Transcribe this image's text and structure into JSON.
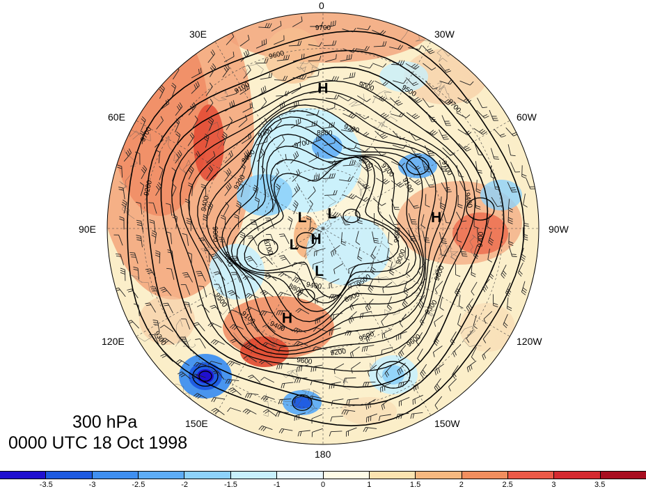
{
  "title": {
    "level": "300 hPa",
    "time": "0000 UTC 18 Oct 1998"
  },
  "longitude_labels": [
    {
      "id": "0",
      "text": "0"
    },
    {
      "id": "30W",
      "text": "30W"
    },
    {
      "id": "60W",
      "text": "60W"
    },
    {
      "id": "90W",
      "text": "90W"
    },
    {
      "id": "120W",
      "text": "120W"
    },
    {
      "id": "150W",
      "text": "150W"
    },
    {
      "id": "180",
      "text": "180"
    },
    {
      "id": "150E",
      "text": "150E"
    },
    {
      "id": "120E",
      "text": "120E"
    },
    {
      "id": "90E",
      "text": "90E"
    },
    {
      "id": "60E",
      "text": "60E"
    },
    {
      "id": "30E",
      "text": "30E"
    }
  ],
  "pressure_centers": [
    {
      "text": "H",
      "lon_deg": 0,
      "colat_deg": 47
    },
    {
      "text": "H",
      "lon_deg": -84,
      "colat_deg": 38
    },
    {
      "text": "H",
      "lon_deg": 158,
      "colat_deg": 32
    },
    {
      "text": "H",
      "lon_deg": 145,
      "colat_deg": 4
    },
    {
      "text": "L",
      "lon_deg": 60,
      "colat_deg": 8
    },
    {
      "text": "L",
      "lon_deg": -30,
      "colat_deg": 6
    },
    {
      "text": "L",
      "lon_deg": 118,
      "colat_deg": 11
    },
    {
      "text": "L",
      "lon_deg": 175,
      "colat_deg": 14
    }
  ],
  "contour_labels": [
    "9700",
    "9700",
    "9700",
    "9600",
    "9600",
    "9500",
    "9400",
    "9300",
    "9200",
    "9100",
    "9000",
    "8900",
    "8800",
    "8700",
    "9700",
    "9600",
    "9500",
    "9400",
    "9300",
    "9200",
    "9100",
    "9000",
    "8900",
    "8800",
    "9700",
    "9600",
    "9500",
    "9400",
    "9300",
    "9200",
    "9100",
    "9000",
    "9700",
    "9600",
    "9500",
    "9400",
    "9300",
    "9200",
    "9700",
    "9600"
  ],
  "colorbar": {
    "colors": [
      "#2010d0",
      "#1e5ae0",
      "#3f8ff0",
      "#5eacf5",
      "#8ed2fa",
      "#c8f0fd",
      "#e8f8fe",
      "#fefbe6",
      "#fbe3b0",
      "#f6b880",
      "#f18e5e",
      "#ec5a48",
      "#d42a30",
      "#a80e20"
    ],
    "ticks": [
      "-3.5",
      "-3",
      "-2.5",
      "-2",
      "-1.5",
      "-1",
      "0",
      "1",
      "1.5",
      "2",
      "2.5",
      "3",
      "3.5"
    ]
  }
}
